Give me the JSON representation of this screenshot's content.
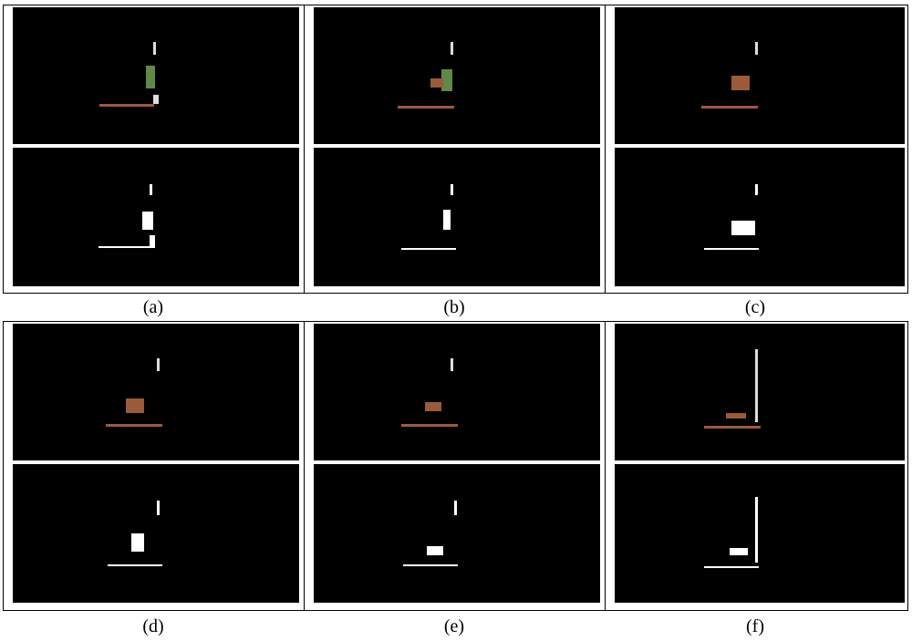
{
  "figure": {
    "labels": [
      "(a)",
      "(b)",
      "(c)",
      "(d)",
      "(e)",
      "(f)"
    ]
  },
  "colors": {
    "background": "#000000",
    "white_mask": "#ffffff",
    "wood": "#9b5a3a",
    "green": "#5f8a45"
  }
}
